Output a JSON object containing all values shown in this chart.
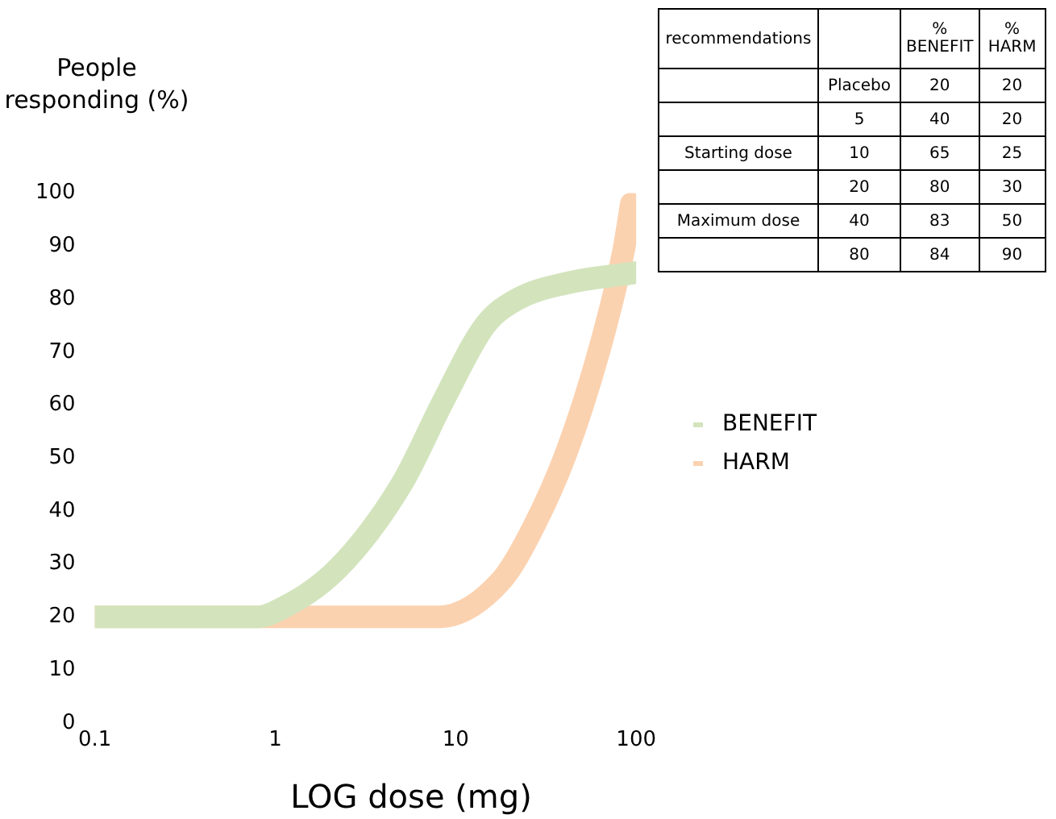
{
  "chart_data": {
    "type": "line",
    "xlabel": "LOG dose (mg)",
    "ylabel": "People responding (%)",
    "log": "x",
    "xlim": [
      0.1,
      100
    ],
    "xticks": [
      0.1,
      1,
      10,
      100
    ],
    "ylim": [
      0,
      100
    ],
    "yticks": [
      0,
      10,
      20,
      30,
      40,
      50,
      60,
      70,
      80,
      90,
      100
    ],
    "grid": false,
    "legend": "right",
    "marker": "none",
    "line_style": "solid",
    "series": [
      {
        "name": "BENEFIT",
        "color": "#d3e4bd",
        "x": [
          0.1,
          0.8,
          1,
          2.2,
          5,
          8.6,
          14.5,
          22,
          41,
          100
        ],
        "values": [
          20,
          20,
          21,
          29,
          45,
          61,
          75,
          80,
          83,
          85
        ]
      },
      {
        "name": "HARM",
        "color": "#fbd2b0",
        "x": [
          0.1,
          8,
          18,
          27,
          41,
          62,
          85,
          94
        ],
        "values": [
          20,
          20,
          27,
          37,
          51,
          70,
          89,
          98
        ]
      }
    ],
    "annotations": [
      "recommendations",
      "% BENEFIT",
      "% HARM",
      "Placebo",
      "20",
      "20",
      "5",
      "40",
      "20",
      "Starting dose",
      "10",
      "65",
      "25",
      "20",
      "80",
      "30",
      "Maximum dose",
      "40",
      "83",
      "50",
      "80",
      "84",
      "90"
    ]
  }
}
